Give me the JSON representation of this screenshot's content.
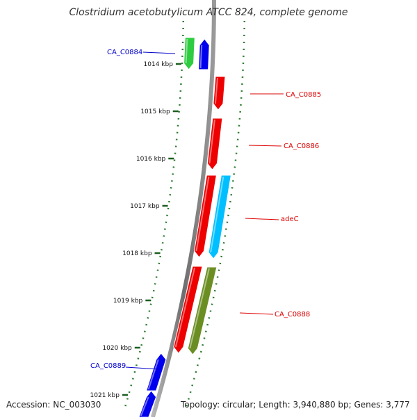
{
  "title": "Clostridium acetobutylicum ATCC 824, complete genome",
  "footer": {
    "accession": "Accession: NC_003030",
    "topology": "Topology: circular; Length: 3,940,880 bp; Genes: 3,777"
  },
  "colors": {
    "backbone": "#8a8a8a",
    "dots": "#2e7d32",
    "tick": "#1b5e20",
    "label_blue": "#0000cc",
    "label_red": "#dd0000"
  },
  "ticks": [
    "1014 kbp",
    "1015 kbp",
    "1016 kbp",
    "1017 kbp",
    "1018 kbp",
    "1019 kbp",
    "1020 kbp",
    "1021 kbp"
  ],
  "genes": [
    {
      "name": "CA_C0884",
      "color": "#2ecc40",
      "strand": "reverse"
    },
    {
      "name": "CA_C0884",
      "color": "#0000ee",
      "strand": "forward"
    },
    {
      "name": "CA_C0885",
      "color": "#ee0000",
      "strand": "reverse"
    },
    {
      "name": "CA_C0886",
      "color": "#ee0000",
      "strand": "reverse"
    },
    {
      "name": "adeC",
      "color": "#ee0000",
      "strand": "reverse"
    },
    {
      "name": "adeC",
      "color": "#00bfff",
      "strand": "reverse"
    },
    {
      "name": "CA_C0888",
      "color": "#ee0000",
      "strand": "reverse"
    },
    {
      "name": "CA_C0888",
      "color": "#6b8e23",
      "strand": "reverse"
    },
    {
      "name": "CA_C0889",
      "color": "#0000ee",
      "strand": "forward"
    },
    {
      "name": "CA_C0889",
      "color": "#0000ee",
      "strand": "forward"
    }
  ],
  "labels": [
    {
      "text": "CA_C0884",
      "color": "blue"
    },
    {
      "text": "CA_C0885",
      "color": "red"
    },
    {
      "text": "CA_C0886",
      "color": "red"
    },
    {
      "text": "adeC",
      "color": "red"
    },
    {
      "text": "CA_C0888",
      "color": "red"
    },
    {
      "text": "CA_C0889",
      "color": "blue"
    }
  ]
}
